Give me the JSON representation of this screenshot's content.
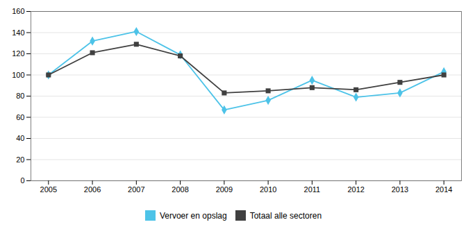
{
  "chart_data": {
    "type": "line",
    "x": [
      2005,
      2006,
      2007,
      2008,
      2009,
      2010,
      2011,
      2012,
      2013,
      2014
    ],
    "series": [
      {
        "name": "Vervoer en opslag",
        "color": "#4DC3E8",
        "marker": "diamond",
        "values": [
          100,
          132,
          141,
          119,
          67,
          76,
          95,
          79,
          83,
          103
        ]
      },
      {
        "name": "Totaal alle sectoren",
        "color": "#404040",
        "marker": "square",
        "values": [
          100,
          121,
          129,
          118,
          83,
          85,
          88,
          86,
          93,
          100
        ]
      }
    ],
    "xlim": [
      2004.6,
      2014.4
    ],
    "xticks": [
      2005,
      2006,
      2007,
      2008,
      2009,
      2010,
      2011,
      2012,
      2013,
      2014
    ],
    "ylim": [
      0,
      160
    ],
    "yticks": [
      0,
      20,
      40,
      60,
      80,
      100,
      120,
      140,
      160
    ],
    "grid": true,
    "legend": "bottom"
  }
}
